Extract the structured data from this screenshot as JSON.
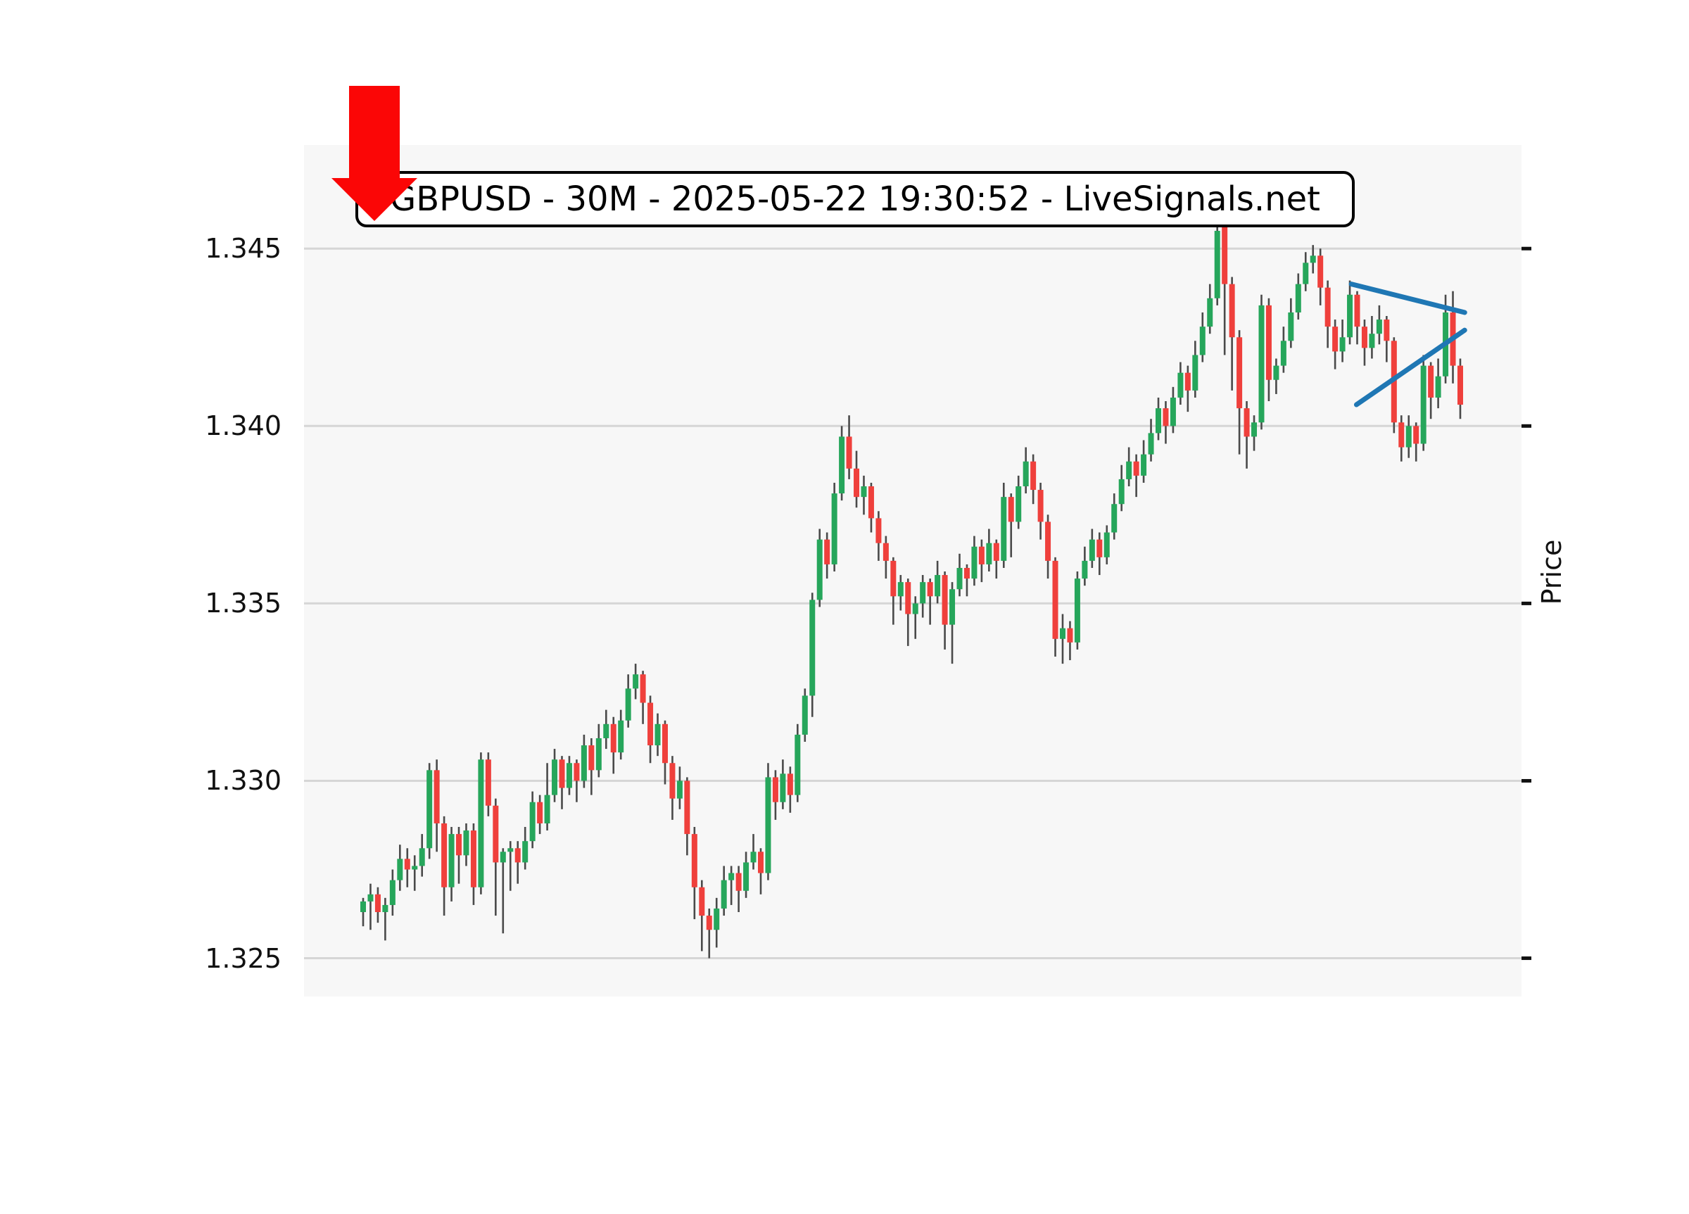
{
  "title": {
    "text": "GBPUSD - 30M - 2025-05-22 19:30:52 - LiveSignals.net",
    "symbol": "GBPUSD",
    "timeframe": "30M",
    "timestamp": "2025-05-22 19:30:52",
    "source": "LiveSignals.net"
  },
  "y_axis": {
    "label": "Price",
    "ticks": [
      "1.345",
      "1.340",
      "1.335",
      "1.330",
      "1.325"
    ],
    "tick_values": [
      1.345,
      1.34,
      1.335,
      1.33,
      1.325
    ]
  },
  "colors": {
    "figure_bg": "#ffffff",
    "plot_bg": "#f7f7f7",
    "grid": "#d6d6d6",
    "up": "#26a65b",
    "down": "#ef403c",
    "wick": "#4a4a4a",
    "trendline": "#1f77b4",
    "arrow": "#fb0606",
    "tick": "#111111"
  },
  "chart_data": {
    "type": "candlestick",
    "title": "GBPUSD - 30M - 2025-05-22 19:30:52 - LiveSignals.net",
    "ylabel": "Price",
    "ylim": [
      1.32392,
      1.34792
    ],
    "grid": true,
    "x_axis_labels_visible": false,
    "candles_ohlc": [
      [
        1.3263,
        1.3267,
        1.3259,
        1.3266
      ],
      [
        1.3266,
        1.3271,
        1.3258,
        1.3268
      ],
      [
        1.3268,
        1.327,
        1.326,
        1.3263
      ],
      [
        1.3263,
        1.3267,
        1.3255,
        1.3265
      ],
      [
        1.3265,
        1.3275,
        1.3262,
        1.3272
      ],
      [
        1.3272,
        1.3282,
        1.3269,
        1.3278
      ],
      [
        1.3278,
        1.3281,
        1.327,
        1.3275
      ],
      [
        1.3275,
        1.3279,
        1.3269,
        1.3276
      ],
      [
        1.3276,
        1.3285,
        1.3273,
        1.3281
      ],
      [
        1.3281,
        1.3305,
        1.3278,
        1.3303
      ],
      [
        1.3303,
        1.3306,
        1.328,
        1.3288
      ],
      [
        1.3288,
        1.329,
        1.3262,
        1.327
      ],
      [
        1.327,
        1.3287,
        1.3266,
        1.3285
      ],
      [
        1.3285,
        1.3287,
        1.3271,
        1.3279
      ],
      [
        1.3279,
        1.3288,
        1.3276,
        1.3286
      ],
      [
        1.3286,
        1.3288,
        1.3265,
        1.327
      ],
      [
        1.327,
        1.3308,
        1.3268,
        1.3306
      ],
      [
        1.3306,
        1.3308,
        1.329,
        1.3293
      ],
      [
        1.3293,
        1.3295,
        1.3262,
        1.3277
      ],
      [
        1.3277,
        1.3281,
        1.3257,
        1.328
      ],
      [
        1.328,
        1.3283,
        1.3269,
        1.3281
      ],
      [
        1.3281,
        1.3283,
        1.3271,
        1.3277
      ],
      [
        1.3277,
        1.3287,
        1.3275,
        1.3283
      ],
      [
        1.3283,
        1.3297,
        1.3281,
        1.3294
      ],
      [
        1.3294,
        1.3296,
        1.3285,
        1.3288
      ],
      [
        1.3288,
        1.3305,
        1.3286,
        1.3296
      ],
      [
        1.3296,
        1.3309,
        1.3294,
        1.3306
      ],
      [
        1.3306,
        1.3307,
        1.3292,
        1.3298
      ],
      [
        1.3298,
        1.3307,
        1.3296,
        1.3305
      ],
      [
        1.3305,
        1.3306,
        1.3294,
        1.33
      ],
      [
        1.33,
        1.3313,
        1.3298,
        1.331
      ],
      [
        1.331,
        1.3312,
        1.3296,
        1.3303
      ],
      [
        1.3303,
        1.3316,
        1.3301,
        1.3312
      ],
      [
        1.3312,
        1.332,
        1.3309,
        1.3316
      ],
      [
        1.3316,
        1.3318,
        1.3302,
        1.3308
      ],
      [
        1.3308,
        1.332,
        1.3306,
        1.3317
      ],
      [
        1.3317,
        1.333,
        1.3315,
        1.3326
      ],
      [
        1.3326,
        1.3333,
        1.3323,
        1.333
      ],
      [
        1.333,
        1.3331,
        1.3316,
        1.3322
      ],
      [
        1.3322,
        1.3324,
        1.3305,
        1.331
      ],
      [
        1.331,
        1.3319,
        1.3307,
        1.3316
      ],
      [
        1.3316,
        1.3317,
        1.3299,
        1.3305
      ],
      [
        1.3305,
        1.3307,
        1.3289,
        1.3295
      ],
      [
        1.3295,
        1.3304,
        1.3292,
        1.33
      ],
      [
        1.33,
        1.3301,
        1.3279,
        1.3285
      ],
      [
        1.3285,
        1.3287,
        1.3261,
        1.327
      ],
      [
        1.327,
        1.3272,
        1.3252,
        1.3262
      ],
      [
        1.3262,
        1.3264,
        1.325,
        1.3258
      ],
      [
        1.3258,
        1.3267,
        1.3253,
        1.3264
      ],
      [
        1.3264,
        1.3276,
        1.3262,
        1.3272
      ],
      [
        1.3272,
        1.3276,
        1.3265,
        1.3274
      ],
      [
        1.3274,
        1.3276,
        1.3263,
        1.3269
      ],
      [
        1.3269,
        1.328,
        1.3267,
        1.3277
      ],
      [
        1.3277,
        1.3285,
        1.3275,
        1.328
      ],
      [
        1.328,
        1.3281,
        1.3268,
        1.3274
      ],
      [
        1.3274,
        1.3305,
        1.3272,
        1.3301
      ],
      [
        1.3301,
        1.3303,
        1.3289,
        1.3294
      ],
      [
        1.3294,
        1.3306,
        1.3292,
        1.3302
      ],
      [
        1.3302,
        1.3304,
        1.3291,
        1.3296
      ],
      [
        1.3296,
        1.3316,
        1.3294,
        1.3313
      ],
      [
        1.3313,
        1.3326,
        1.3311,
        1.3324
      ],
      [
        1.3324,
        1.3353,
        1.3318,
        1.3351
      ],
      [
        1.3351,
        1.3371,
        1.3349,
        1.3368
      ],
      [
        1.3368,
        1.337,
        1.3357,
        1.3361
      ],
      [
        1.3361,
        1.3384,
        1.3359,
        1.3381
      ],
      [
        1.3381,
        1.34,
        1.3379,
        1.3397
      ],
      [
        1.3397,
        1.3403,
        1.3385,
        1.3388
      ],
      [
        1.3388,
        1.3393,
        1.3377,
        1.338
      ],
      [
        1.338,
        1.3386,
        1.3375,
        1.3383
      ],
      [
        1.3383,
        1.3384,
        1.337,
        1.3374
      ],
      [
        1.3374,
        1.3376,
        1.3362,
        1.3367
      ],
      [
        1.3367,
        1.3369,
        1.3357,
        1.3362
      ],
      [
        1.3362,
        1.3363,
        1.3344,
        1.3352
      ],
      [
        1.3352,
        1.3358,
        1.3348,
        1.3356
      ],
      [
        1.3356,
        1.3357,
        1.3338,
        1.3347
      ],
      [
        1.3347,
        1.3352,
        1.334,
        1.335
      ],
      [
        1.335,
        1.3358,
        1.3346,
        1.3356
      ],
      [
        1.3356,
        1.3357,
        1.3344,
        1.3352
      ],
      [
        1.3352,
        1.3362,
        1.335,
        1.3358
      ],
      [
        1.3358,
        1.3359,
        1.3337,
        1.3344
      ],
      [
        1.3344,
        1.3356,
        1.3333,
        1.3354
      ],
      [
        1.3354,
        1.3364,
        1.3352,
        1.336
      ],
      [
        1.336,
        1.3361,
        1.3352,
        1.3357
      ],
      [
        1.3357,
        1.3369,
        1.3355,
        1.3366
      ],
      [
        1.3366,
        1.3368,
        1.3356,
        1.3361
      ],
      [
        1.3361,
        1.3371,
        1.3359,
        1.3367
      ],
      [
        1.3367,
        1.3368,
        1.3357,
        1.3362
      ],
      [
        1.3362,
        1.3384,
        1.336,
        1.338
      ],
      [
        1.338,
        1.3381,
        1.3363,
        1.3373
      ],
      [
        1.3373,
        1.3386,
        1.3371,
        1.3383
      ],
      [
        1.3383,
        1.3394,
        1.3381,
        1.339
      ],
      [
        1.339,
        1.3392,
        1.3378,
        1.3382
      ],
      [
        1.3382,
        1.3384,
        1.3368,
        1.3373
      ],
      [
        1.3373,
        1.3375,
        1.3357,
        1.3362
      ],
      [
        1.3362,
        1.3363,
        1.3335,
        1.334
      ],
      [
        1.334,
        1.3347,
        1.3333,
        1.3343
      ],
      [
        1.3343,
        1.3345,
        1.3334,
        1.3339
      ],
      [
        1.3339,
        1.3359,
        1.3337,
        1.3357
      ],
      [
        1.3357,
        1.3366,
        1.3355,
        1.3362
      ],
      [
        1.3362,
        1.3371,
        1.336,
        1.3368
      ],
      [
        1.3368,
        1.337,
        1.3358,
        1.3363
      ],
      [
        1.3363,
        1.3372,
        1.3361,
        1.337
      ],
      [
        1.337,
        1.3381,
        1.3368,
        1.3378
      ],
      [
        1.3378,
        1.3389,
        1.3376,
        1.3385
      ],
      [
        1.3385,
        1.3394,
        1.3383,
        1.339
      ],
      [
        1.339,
        1.3392,
        1.338,
        1.3386
      ],
      [
        1.3386,
        1.3396,
        1.3384,
        1.3392
      ],
      [
        1.3392,
        1.3402,
        1.339,
        1.3398
      ],
      [
        1.3398,
        1.3408,
        1.3396,
        1.3405
      ],
      [
        1.3405,
        1.3407,
        1.3395,
        1.34
      ],
      [
        1.34,
        1.3411,
        1.3398,
        1.3408
      ],
      [
        1.3408,
        1.3418,
        1.3406,
        1.3415
      ],
      [
        1.3415,
        1.3417,
        1.3404,
        1.341
      ],
      [
        1.341,
        1.3424,
        1.3408,
        1.342
      ],
      [
        1.342,
        1.3432,
        1.3418,
        1.3428
      ],
      [
        1.3428,
        1.344,
        1.3426,
        1.3436
      ],
      [
        1.3436,
        1.3458,
        1.3434,
        1.3455
      ],
      [
        1.3456,
        1.3457,
        1.342,
        1.344
      ],
      [
        1.344,
        1.3442,
        1.341,
        1.3425
      ],
      [
        1.3425,
        1.3427,
        1.3392,
        1.3405
      ],
      [
        1.3405,
        1.3407,
        1.3388,
        1.3397
      ],
      [
        1.3397,
        1.3403,
        1.3393,
        1.3401
      ],
      [
        1.3401,
        1.3437,
        1.3399,
        1.3434
      ],
      [
        1.3434,
        1.3436,
        1.3407,
        1.3413
      ],
      [
        1.3413,
        1.3419,
        1.3409,
        1.3417
      ],
      [
        1.3417,
        1.3428,
        1.3415,
        1.3424
      ],
      [
        1.3424,
        1.3436,
        1.3422,
        1.3432
      ],
      [
        1.3432,
        1.3443,
        1.343,
        1.344
      ],
      [
        1.344,
        1.3449,
        1.3438,
        1.3446
      ],
      [
        1.3446,
        1.3451,
        1.3443,
        1.3448
      ],
      [
        1.3448,
        1.345,
        1.3434,
        1.3439
      ],
      [
        1.3439,
        1.3441,
        1.3422,
        1.3428
      ],
      [
        1.3428,
        1.343,
        1.3416,
        1.3421
      ],
      [
        1.3421,
        1.343,
        1.3418,
        1.3425
      ],
      [
        1.3425,
        1.3441,
        1.3423,
        1.3437
      ],
      [
        1.3437,
        1.3438,
        1.3423,
        1.3428
      ],
      [
        1.3428,
        1.343,
        1.3417,
        1.3422
      ],
      [
        1.3422,
        1.3431,
        1.3419,
        1.3426
      ],
      [
        1.3426,
        1.3434,
        1.3423,
        1.343
      ],
      [
        1.343,
        1.3431,
        1.3418,
        1.3424
      ],
      [
        1.3424,
        1.3425,
        1.3398,
        1.3401
      ],
      [
        1.3401,
        1.3403,
        1.339,
        1.3394
      ],
      [
        1.3394,
        1.3403,
        1.3391,
        1.34
      ],
      [
        1.34,
        1.3401,
        1.339,
        1.3395
      ],
      [
        1.3395,
        1.342,
        1.3393,
        1.3417
      ],
      [
        1.3417,
        1.3418,
        1.3402,
        1.3408
      ],
      [
        1.3408,
        1.3419,
        1.3405,
        1.3414
      ],
      [
        1.3414,
        1.3437,
        1.3412,
        1.3432
      ],
      [
        1.3432,
        1.3438,
        1.3412,
        1.3417
      ],
      [
        1.3417,
        1.3419,
        1.3402,
        1.3406
      ]
    ],
    "trendlines": [
      {
        "name": "upper-descending",
        "x1": 134.2,
        "price1": 1.344,
        "x2": 149.6,
        "price2": 1.3432
      },
      {
        "name": "lower-ascending",
        "x1": 134.9,
        "price1": 1.3406,
        "x2": 149.6,
        "price2": 1.3427
      }
    ],
    "legend": null
  },
  "annotations": {
    "arrow": "red-down-arrow"
  }
}
